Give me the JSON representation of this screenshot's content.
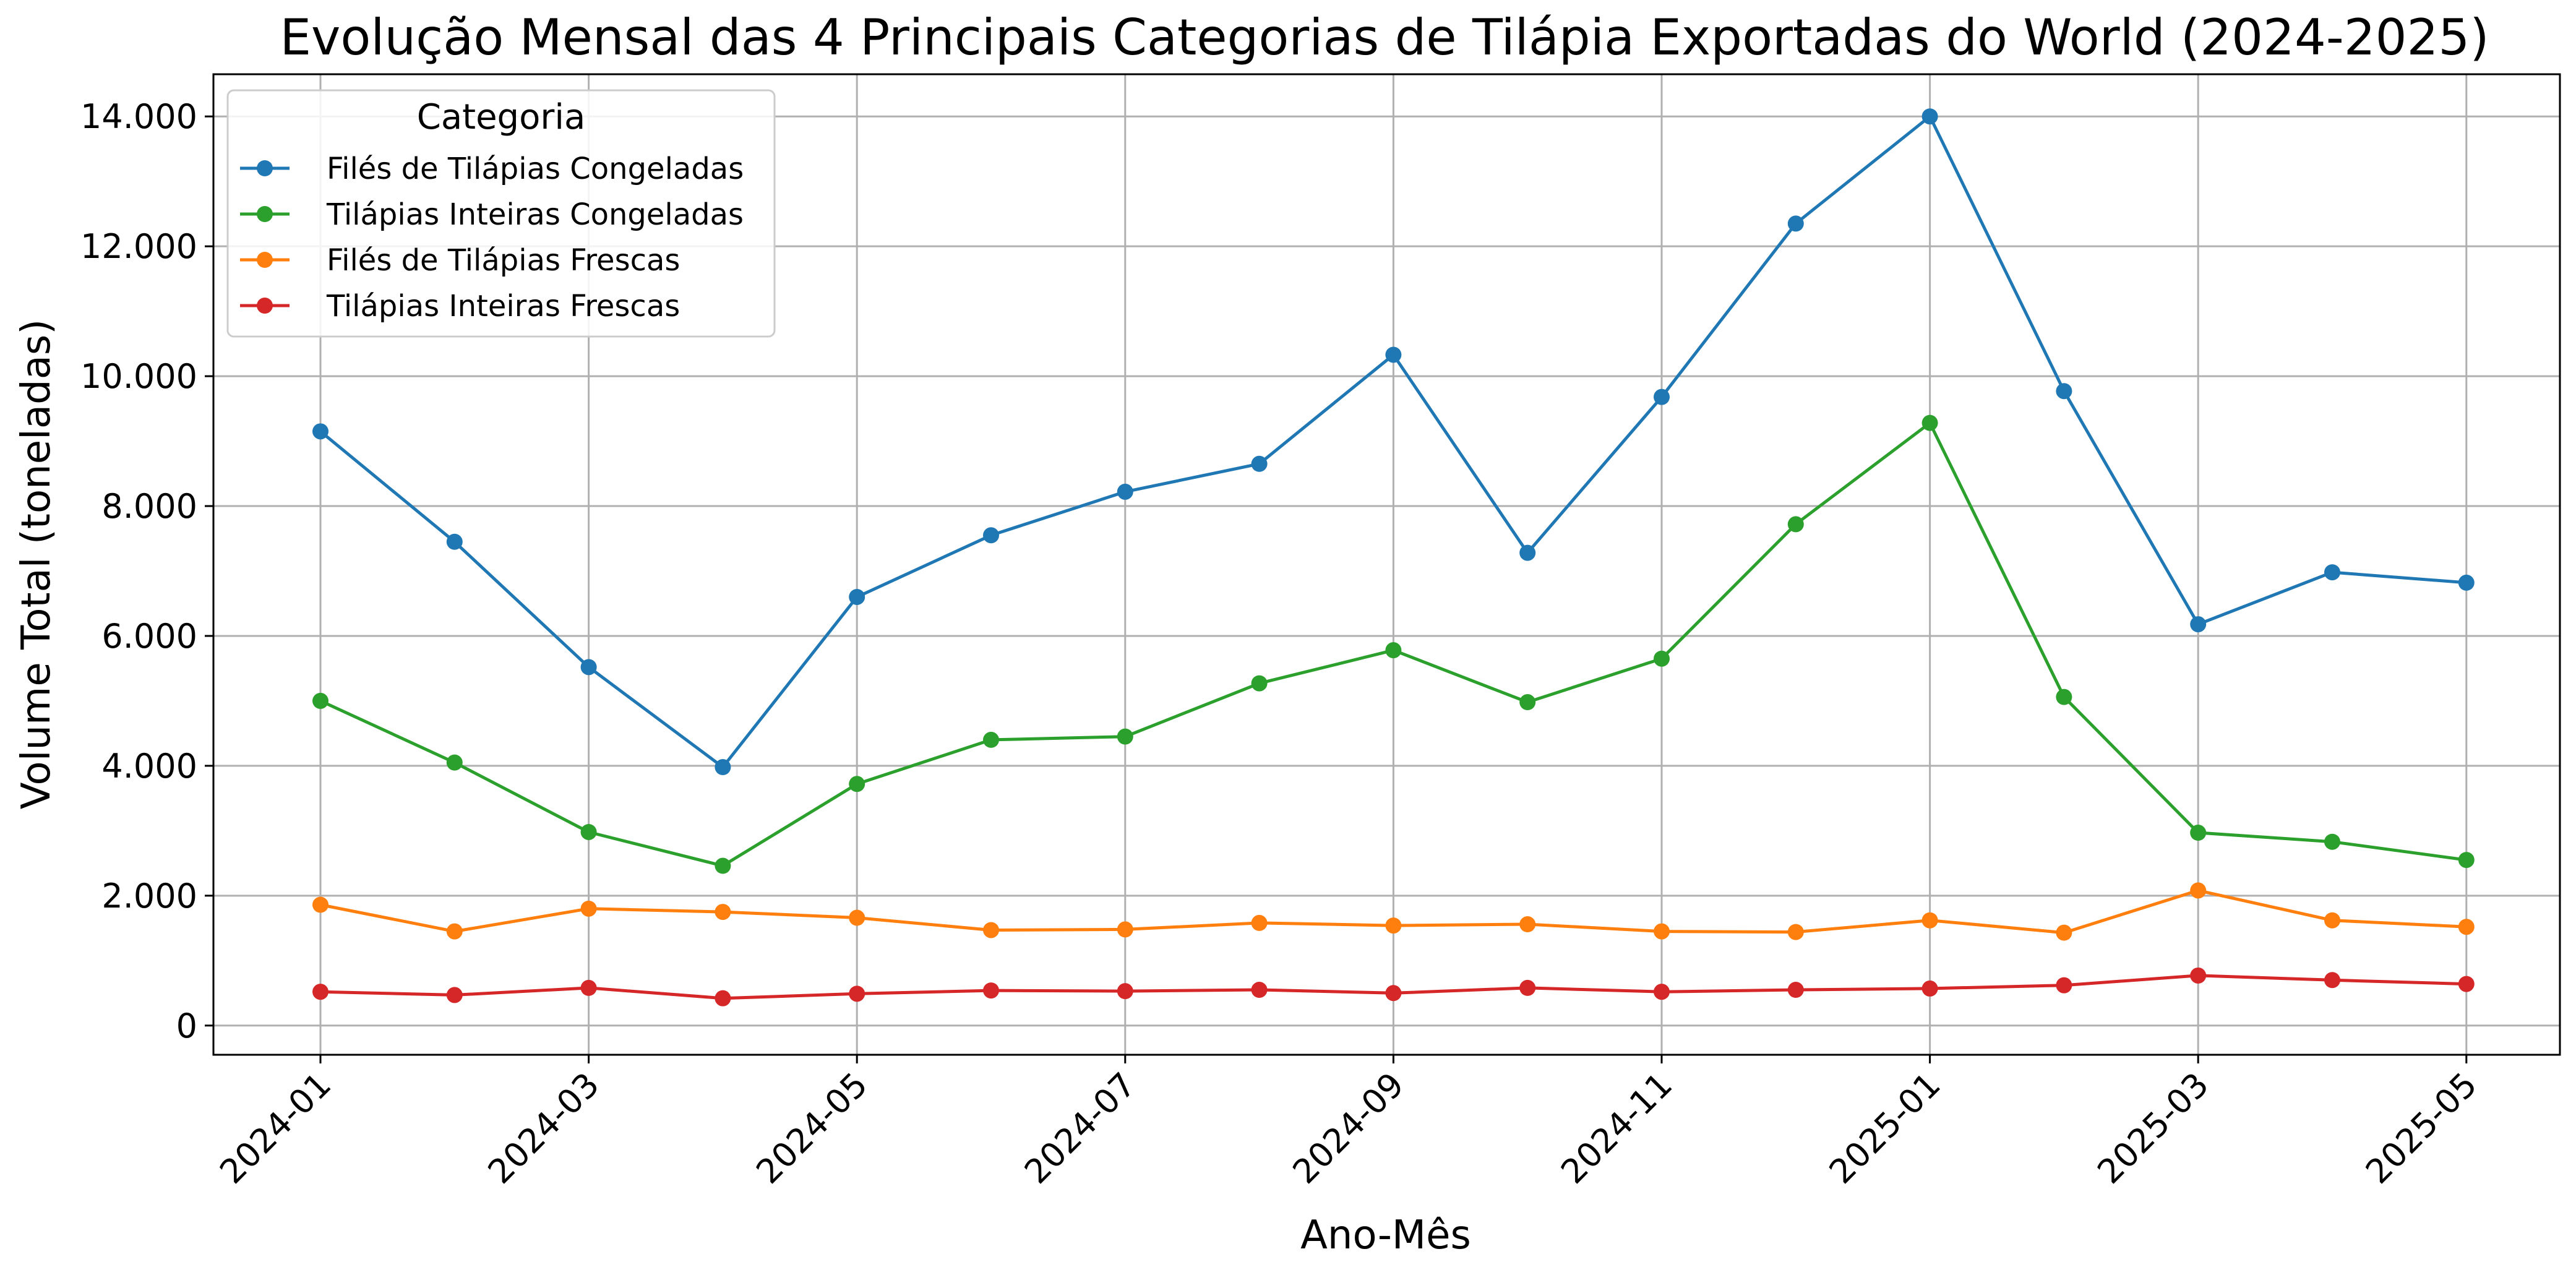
{
  "chart_data": {
    "type": "line",
    "title": "Evolução Mensal das 4 Principais Categorias de Tilápia Exportadas do World (2024-2025)",
    "xlabel": "Ano-Mês",
    "ylabel": "Volume Total (toneladas)",
    "x": [
      "2024-01",
      "2024-02",
      "2024-03",
      "2024-04",
      "2024-05",
      "2024-06",
      "2024-07",
      "2024-08",
      "2024-09",
      "2024-10",
      "2024-11",
      "2024-12",
      "2025-01",
      "2025-02",
      "2025-03",
      "2025-04",
      "2025-05"
    ],
    "x_tick_labels": [
      "2024-01",
      "2024-03",
      "2024-05",
      "2024-07",
      "2024-09",
      "2024-11",
      "2025-01",
      "2025-03",
      "2025-05"
    ],
    "y_ticks": [
      0,
      2000,
      4000,
      6000,
      8000,
      10000,
      12000,
      14000
    ],
    "y_tick_labels": [
      "0",
      "2.000",
      "4.000",
      "6.000",
      "8.000",
      "10.000",
      "12.000",
      "14.000"
    ],
    "ylim": [
      -450,
      14650
    ],
    "grid": true,
    "legend": {
      "title": "Categoria",
      "placement": "top-left"
    },
    "series": [
      {
        "name": "Filés de Tilápias Congeladas",
        "color": "#1f77b4",
        "values": [
          9150,
          7450,
          5520,
          3980,
          6600,
          7550,
          8220,
          8650,
          10330,
          7280,
          9680,
          12350,
          14000,
          9770,
          6180,
          6980,
          6820
        ]
      },
      {
        "name": "Tilápias Inteiras Congeladas",
        "color": "#2ca02c",
        "values": [
          5000,
          4050,
          2980,
          2460,
          3720,
          4400,
          4450,
          5270,
          5780,
          4980,
          5650,
          7720,
          9280,
          5060,
          2970,
          2830,
          2550
        ]
      },
      {
        "name": "Filés de Tilápias Frescas",
        "color": "#ff7f0e",
        "values": [
          1860,
          1450,
          1800,
          1750,
          1660,
          1470,
          1480,
          1580,
          1540,
          1560,
          1450,
          1440,
          1620,
          1430,
          2080,
          1620,
          1520
        ]
      },
      {
        "name": "Tilápias Inteiras Frescas",
        "color": "#d62728",
        "values": [
          520,
          470,
          580,
          420,
          490,
          540,
          530,
          550,
          500,
          580,
          520,
          550,
          570,
          620,
          770,
          700,
          640
        ]
      }
    ]
  }
}
